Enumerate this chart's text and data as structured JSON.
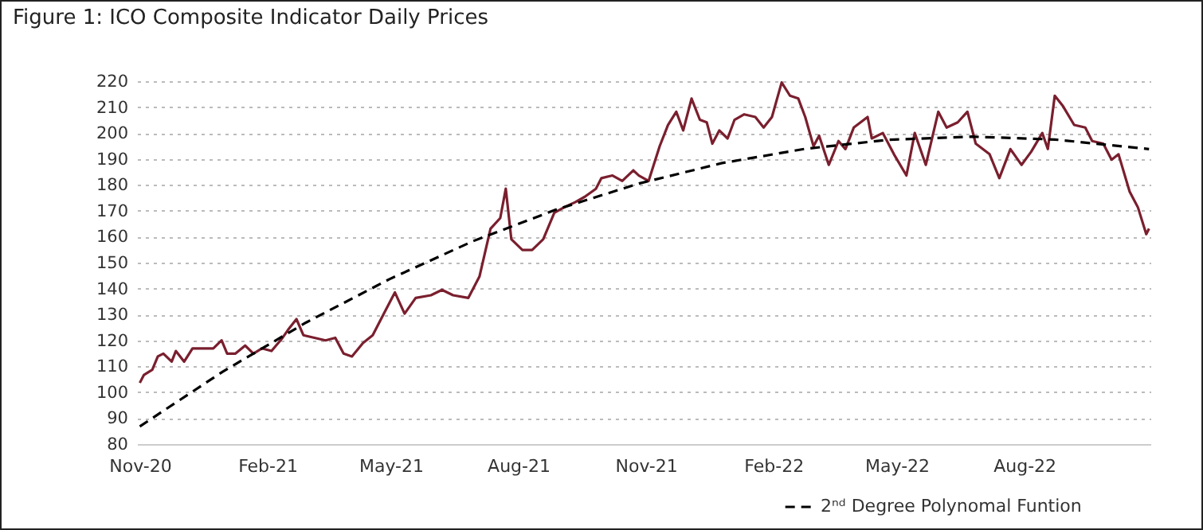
{
  "chart_data": {
    "type": "line",
    "title": "Figure 1: ICO Composite Indicator Daily Prices",
    "series": [
      {
        "color": "#7a1f2e",
        "line_style": "solid",
        "x": [
          "2020-11-01",
          "2020-11-04",
          "2020-11-10",
          "2020-11-14",
          "2020-11-18",
          "2020-11-24",
          "2020-11-27",
          "2020-12-03",
          "2020-12-09",
          "2020-12-17",
          "2020-12-24",
          "2020-12-30",
          "2021-01-03",
          "2021-01-09",
          "2021-01-16",
          "2021-01-22",
          "2021-01-28",
          "2021-02-04",
          "2021-02-12",
          "2021-02-16",
          "2021-02-22",
          "2021-02-27",
          "2021-03-07",
          "2021-03-15",
          "2021-03-22",
          "2021-03-28",
          "2021-04-03",
          "2021-04-11",
          "2021-04-18",
          "2021-04-26",
          "2021-05-04",
          "2021-05-11",
          "2021-05-19",
          "2021-05-30",
          "2021-06-07",
          "2021-06-15",
          "2021-06-26",
          "2021-07-04",
          "2021-07-12",
          "2021-07-19",
          "2021-07-23",
          "2021-07-27",
          "2021-08-04",
          "2021-08-11",
          "2021-08-19",
          "2021-08-27",
          "2021-09-03",
          "2021-09-11",
          "2021-09-18",
          "2021-09-26",
          "2021-09-30",
          "2021-10-08",
          "2021-10-15",
          "2021-10-23",
          "2021-10-27",
          "2021-11-03",
          "2021-11-11",
          "2021-11-17",
          "2021-11-23",
          "2021-11-28",
          "2021-12-04",
          "2021-12-10",
          "2021-12-15",
          "2021-12-19",
          "2021-12-24",
          "2021-12-30",
          "2022-01-04",
          "2022-01-11",
          "2022-01-19",
          "2022-01-25",
          "2022-01-31",
          "2022-02-07",
          "2022-02-13",
          "2022-02-19",
          "2022-02-24",
          "2022-03-02",
          "2022-03-06",
          "2022-03-13",
          "2022-03-20",
          "2022-03-25",
          "2022-03-31",
          "2022-04-10",
          "2022-04-13",
          "2022-04-21",
          "2022-04-29",
          "2022-05-08",
          "2022-05-14",
          "2022-05-22",
          "2022-05-31",
          "2022-06-06",
          "2022-06-14",
          "2022-06-21",
          "2022-06-27",
          "2022-07-07",
          "2022-07-14",
          "2022-07-22",
          "2022-07-30",
          "2022-08-06",
          "2022-08-14",
          "2022-08-18",
          "2022-08-23",
          "2022-08-29",
          "2022-09-06",
          "2022-09-14",
          "2022-09-19",
          "2022-09-27",
          "2022-10-03",
          "2022-10-08",
          "2022-10-16",
          "2022-10-22",
          "2022-10-28",
          "2022-10-30"
        ],
        "values": [
          103.6,
          106.7,
          108.7,
          113.8,
          114.9,
          111.8,
          115.9,
          111.8,
          116.9,
          116.9,
          116.9,
          120,
          114.9,
          114.9,
          118,
          114.9,
          116.9,
          115.9,
          121,
          124.1,
          128.2,
          122,
          121,
          120,
          121,
          114.9,
          113.8,
          119,
          122,
          130.3,
          138.5,
          130.3,
          136.4,
          137.4,
          139.5,
          137.4,
          136.4,
          144.6,
          163.1,
          167.2,
          178.5,
          159,
          154.9,
          154.9,
          159,
          169.2,
          171.3,
          173.3,
          175.4,
          178.5,
          182.6,
          183.6,
          181.5,
          185.6,
          183.6,
          181.5,
          194.9,
          203.1,
          208.2,
          201,
          213.3,
          205.1,
          204.1,
          195.9,
          201,
          197.9,
          205.1,
          207.2,
          206.2,
          202.1,
          206.2,
          219.5,
          214.4,
          213.3,
          206.2,
          194.9,
          199,
          187.7,
          196.9,
          193.8,
          202.1,
          206.2,
          197.9,
          200,
          191.8,
          183.6,
          200,
          187.7,
          208.2,
          202.1,
          204.1,
          208.2,
          195.9,
          191.8,
          182.6,
          193.8,
          187.7,
          192.8,
          200,
          193.8,
          214.4,
          210.3,
          203.1,
          202.1,
          196.9,
          195.9,
          189.7,
          191.8,
          177.4,
          171.3,
          161,
          163.1
        ]
      },
      {
        "name": "2ⁿᵈ Degree Polynomal Funtion",
        "color": "#000000",
        "line_style": "dashed",
        "x": [
          "2020-11-01",
          "2020-12-31",
          "2021-03-01",
          "2021-04-30",
          "2021-06-29",
          "2021-08-28",
          "2021-10-27",
          "2021-12-26",
          "2022-02-24",
          "2022-04-25",
          "2022-06-24",
          "2022-08-23",
          "2022-10-30"
        ],
        "values": [
          86.8,
          108.0,
          126.9,
          143.6,
          158.2,
          170.4,
          180.5,
          188.4,
          193.9,
          197.4,
          198.6,
          197.5,
          193.8
        ]
      }
    ],
    "xlim": [
      "2020-10-30",
      "2022-10-31"
    ],
    "xticks": [
      {
        "value": "2020-11-01",
        "label": "Nov-20"
      },
      {
        "value": "2021-02-01",
        "label": "Feb-21"
      },
      {
        "value": "2021-05-01",
        "label": "May-21"
      },
      {
        "value": "2021-08-01",
        "label": "Aug-21"
      },
      {
        "value": "2021-11-01",
        "label": "Nov-21"
      },
      {
        "value": "2022-02-01",
        "label": "Feb-22"
      },
      {
        "value": "2022-05-01",
        "label": "May-22"
      },
      {
        "value": "2022-08-01",
        "label": "Aug-22"
      }
    ],
    "ylim": [
      80,
      220
    ],
    "yticks": [
      80,
      90,
      100,
      110,
      120,
      130,
      140,
      150,
      160,
      170,
      180,
      190,
      200,
      210,
      220
    ],
    "grid": "y",
    "legend": "bottom"
  }
}
